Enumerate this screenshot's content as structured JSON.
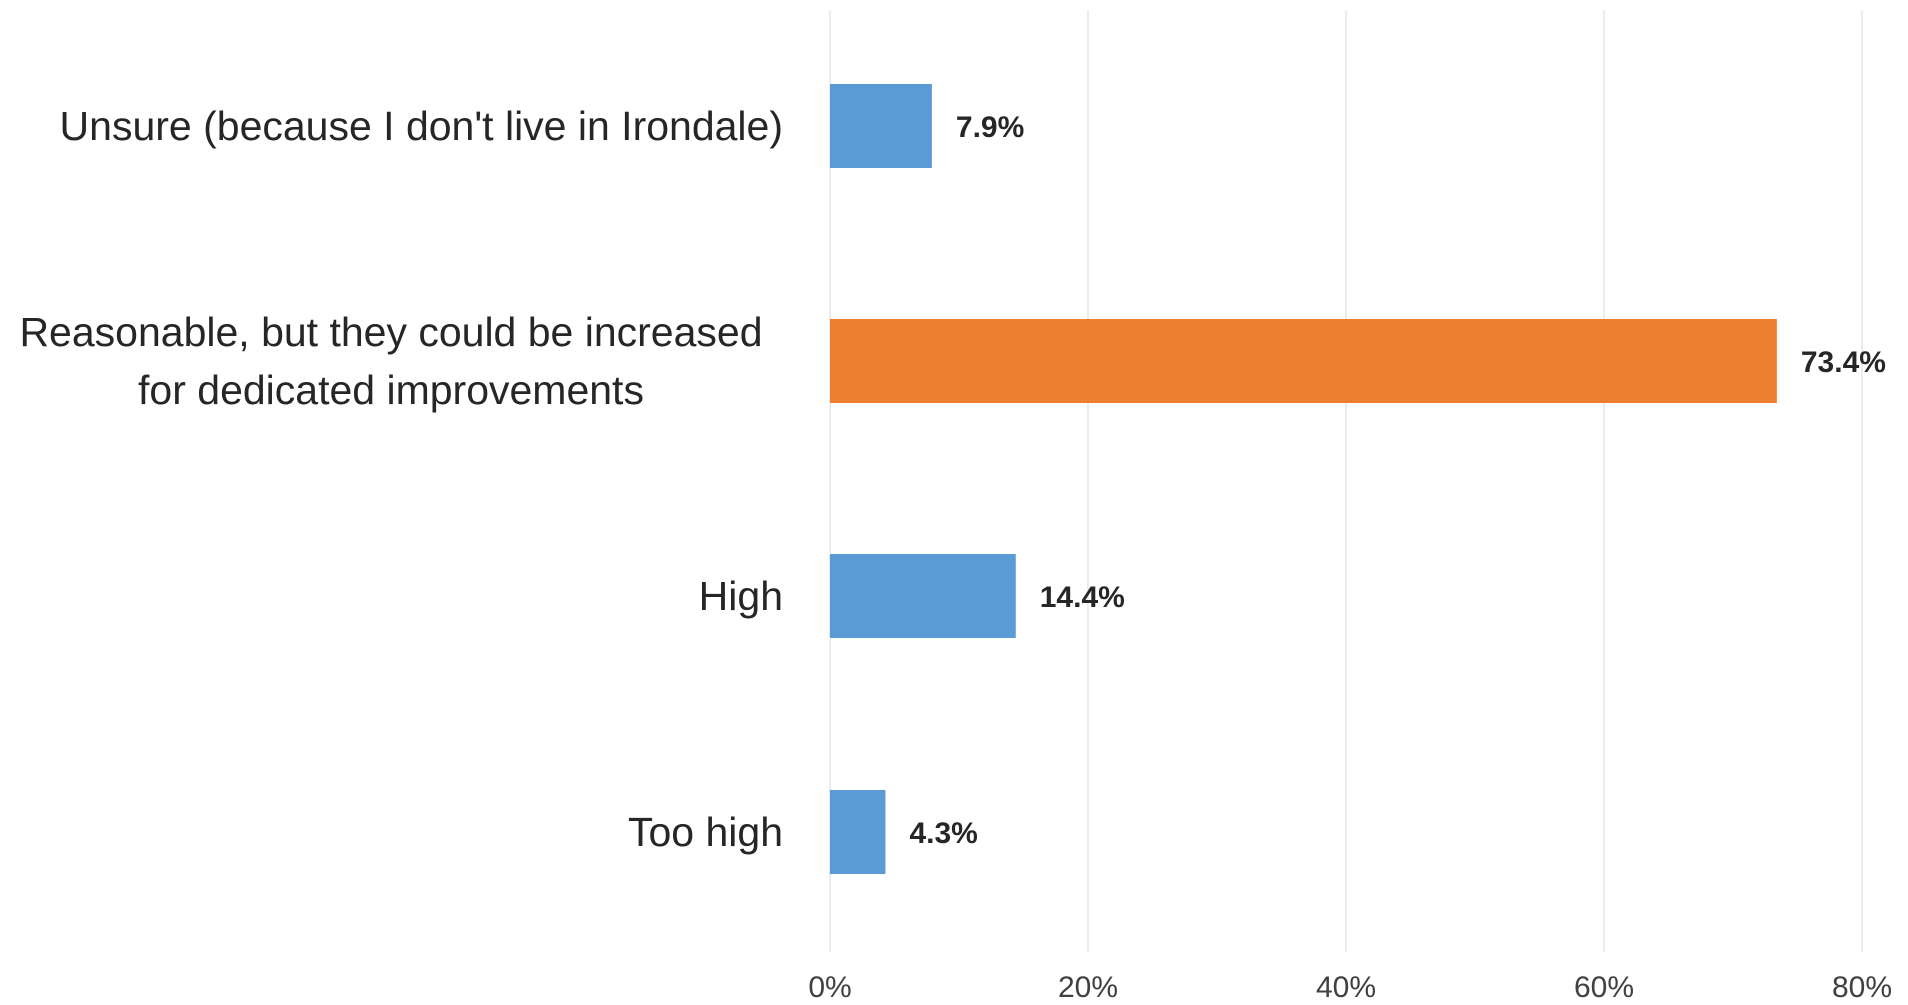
{
  "chart_data": {
    "type": "bar",
    "orientation": "horizontal",
    "categories": [
      [
        "Unsure (because I don't live in Irondale)"
      ],
      [
        "Reasonable, but they could be increased",
        "for dedicated improvements"
      ],
      [
        "High"
      ],
      [
        "Too high"
      ]
    ],
    "values": [
      7.9,
      73.4,
      14.4,
      4.3
    ],
    "data_labels": [
      "7.9%",
      "73.4%",
      "14.4%",
      "4.3%"
    ],
    "bar_colors": [
      "#5b9bd5",
      "#ed7d31",
      "#5b9bd5",
      "#5b9bd5"
    ],
    "xlim": [
      0,
      80
    ],
    "x_ticks": [
      0,
      20,
      40,
      60,
      80
    ],
    "x_tick_labels": [
      "0%",
      "20%",
      "40%",
      "60%",
      "80%"
    ],
    "title": "",
    "xlabel": "",
    "ylabel": "",
    "grid": "vertical",
    "legend": "none"
  }
}
